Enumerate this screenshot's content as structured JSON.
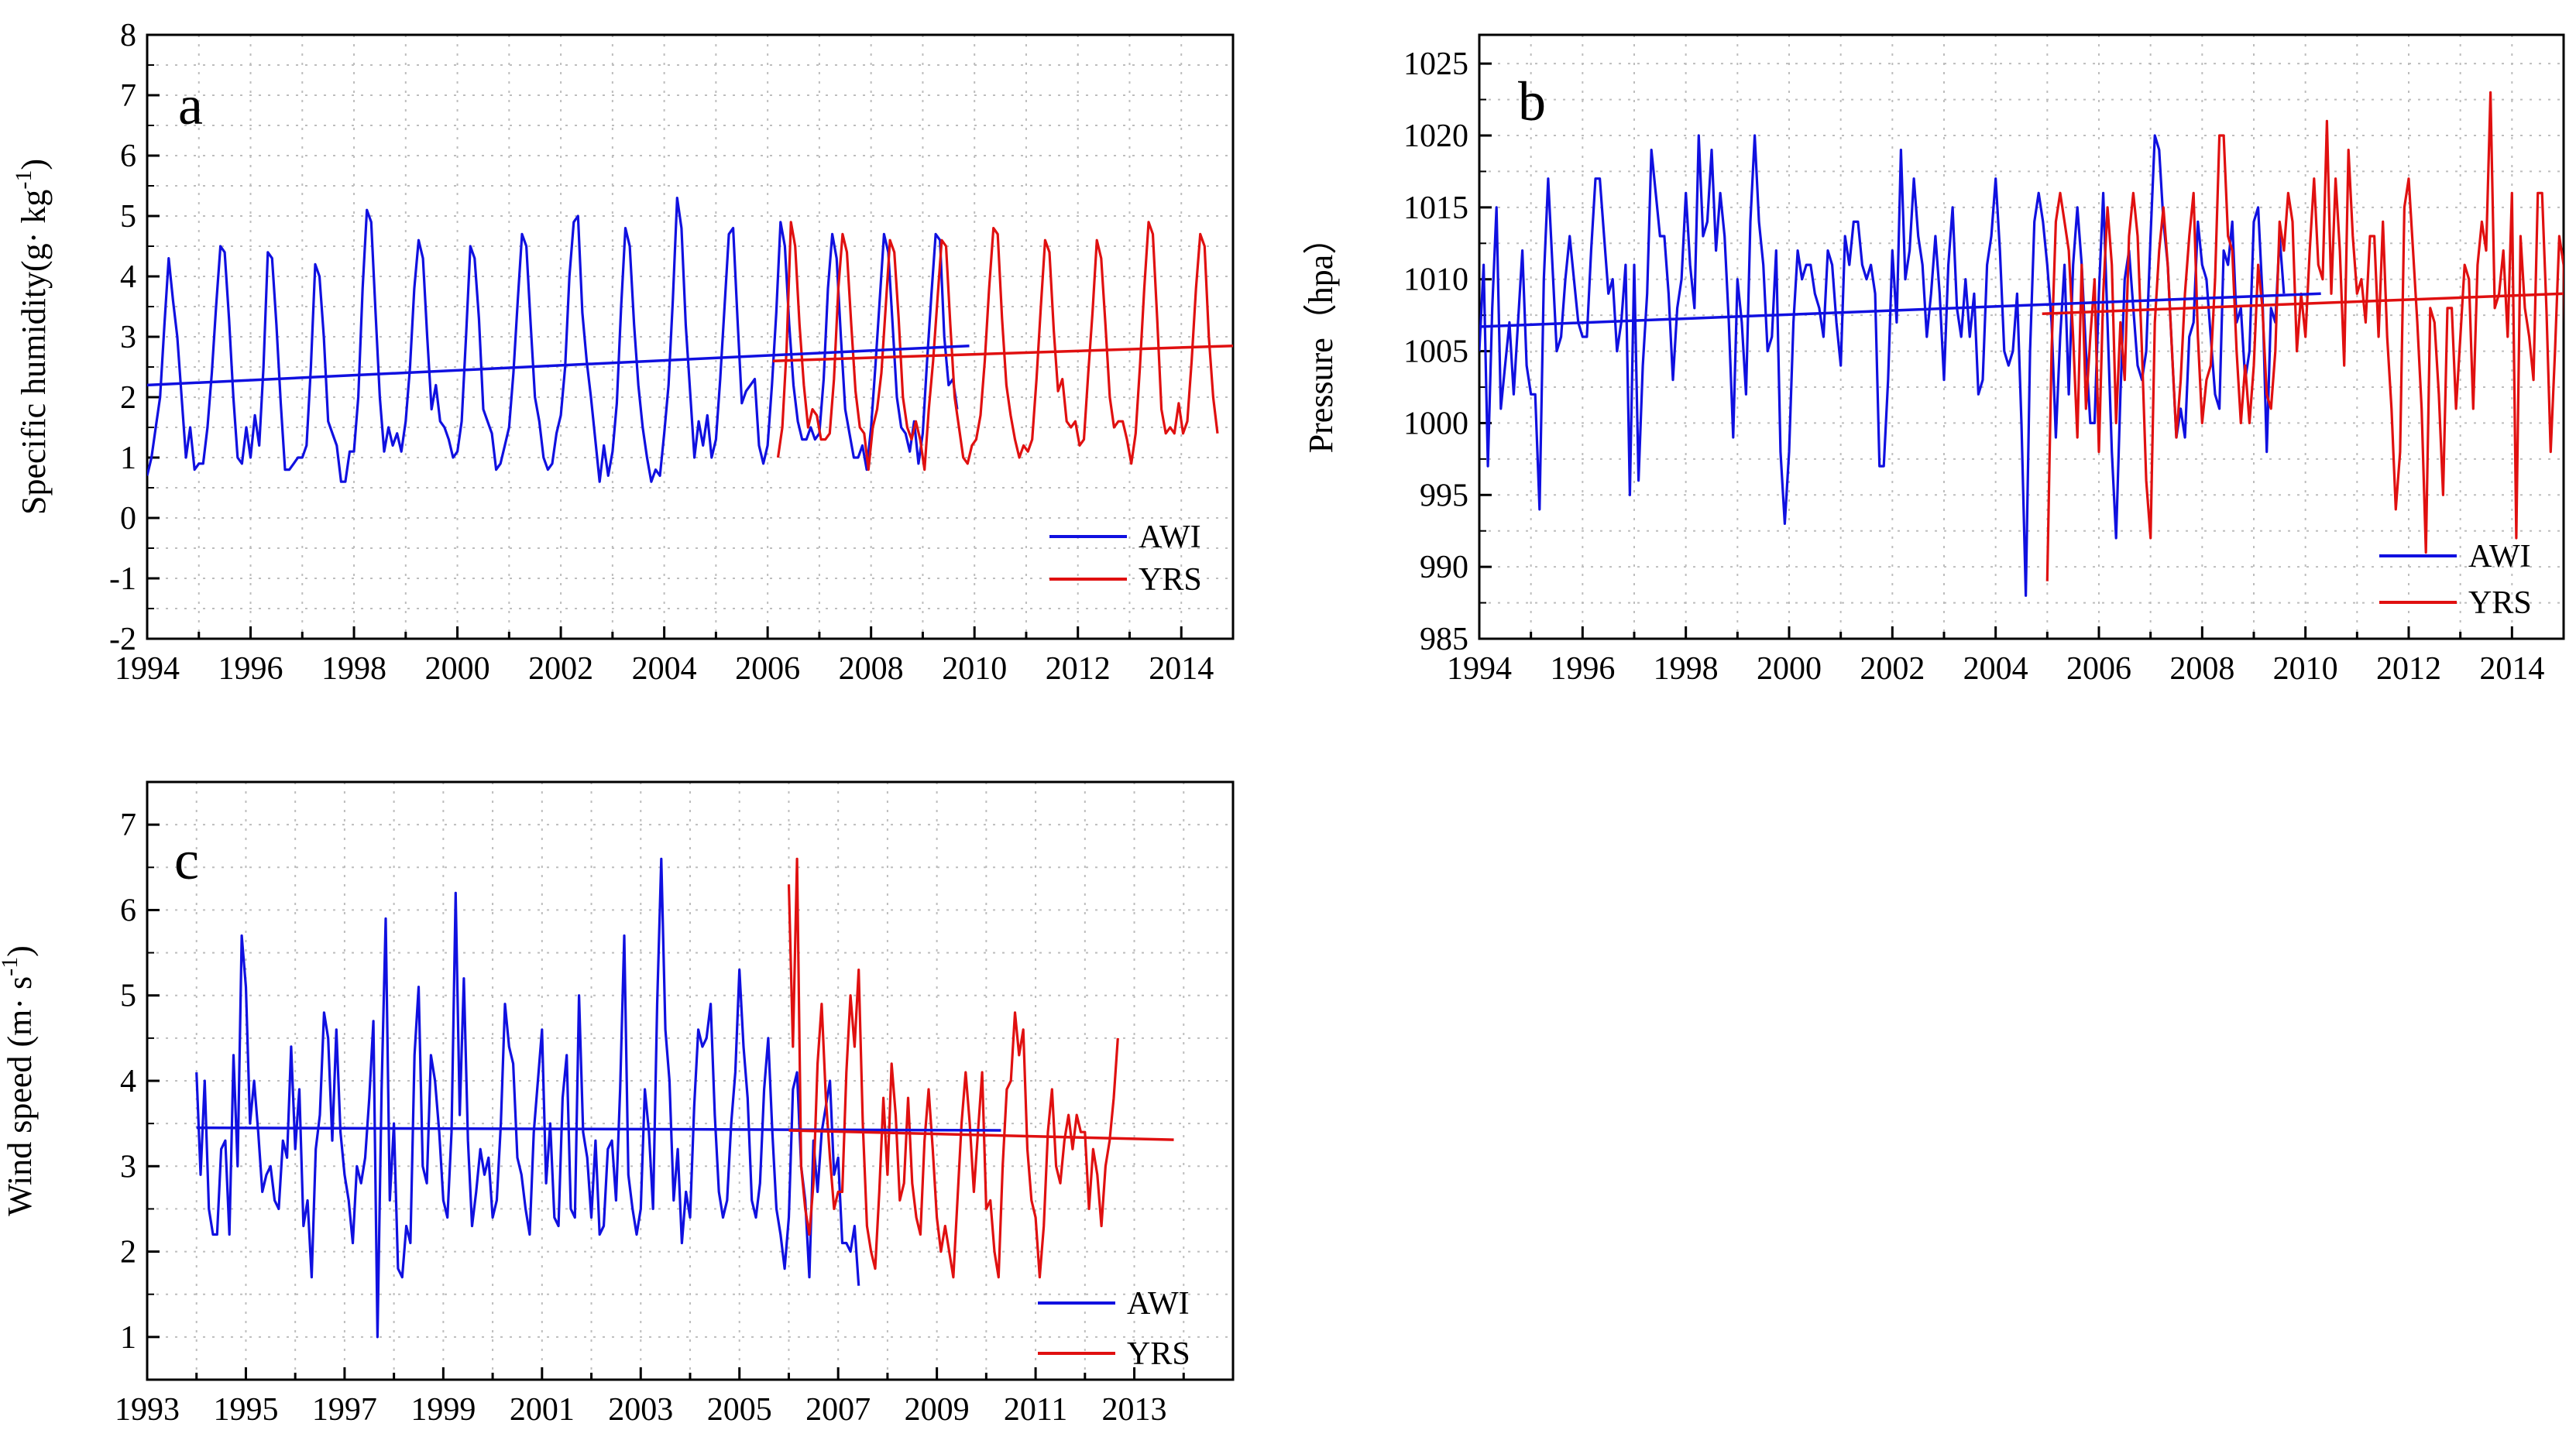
{
  "chart_data": [
    {
      "type": "line",
      "panel_label": "a",
      "ylabel_main": "Specific  humidity(g· kg",
      "ylabel_sup": "-1",
      "ylabel_close": ")",
      "xlim": [
        1994,
        2015
      ],
      "ylim": [
        -2,
        8
      ],
      "xticks": [
        "1994",
        "1996",
        "1998",
        "2000",
        "2002",
        "2004",
        "2006",
        "2008",
        "2010",
        "2012",
        "2014"
      ],
      "yticks": [
        "-2",
        "-1",
        "0",
        "1",
        "2",
        "3",
        "4",
        "5",
        "6",
        "7",
        "8"
      ],
      "legend": [
        "AWI",
        "YRS"
      ],
      "legend_position": "bottom-right",
      "colors": {
        "AWI": "#1010e0",
        "YRS": "#e01010"
      },
      "series": [
        {
          "name": "AWI",
          "start": 1994.0,
          "values": [
            0.7,
            1.0,
            1.5,
            2.0,
            3.2,
            4.3,
            3.6,
            3.0,
            2.0,
            1.0,
            1.5,
            0.8,
            0.9,
            0.9,
            1.5,
            2.4,
            3.5,
            4.5,
            4.4,
            3.3,
            2.0,
            1.0,
            0.9,
            1.5,
            1.0,
            1.7,
            1.2,
            2.5,
            4.4,
            4.3,
            3.2,
            1.9,
            0.8,
            0.8,
            0.9,
            1.0,
            1.0,
            1.2,
            2.5,
            4.2,
            4.0,
            3.0,
            1.6,
            1.4,
            1.2,
            0.6,
            0.6,
            1.1,
            1.1,
            2.0,
            3.8,
            5.1,
            4.9,
            3.4,
            2.0,
            1.1,
            1.5,
            1.2,
            1.4,
            1.1,
            1.6,
            2.5,
            3.8,
            4.6,
            4.3,
            3.0,
            1.8,
            2.2,
            1.6,
            1.5,
            1.3,
            1.0,
            1.1,
            1.6,
            3.0,
            4.5,
            4.3,
            3.3,
            1.8,
            1.6,
            1.4,
            0.8,
            0.9,
            1.2,
            1.5,
            2.4,
            3.6,
            4.7,
            4.5,
            3.2,
            2.0,
            1.6,
            1.0,
            0.8,
            0.9,
            1.4,
            1.7,
            2.5,
            4.0,
            4.9,
            5.0,
            3.4,
            2.6,
            2.0,
            1.3,
            0.6,
            1.2,
            0.7,
            1.1,
            1.9,
            3.5,
            4.8,
            4.5,
            3.2,
            2.2,
            1.5,
            1.0,
            0.6,
            0.8,
            0.7,
            1.4,
            2.2,
            3.6,
            5.3,
            4.8,
            3.2,
            2.1,
            1.0,
            1.6,
            1.2,
            1.7,
            1.0,
            1.3,
            2.3,
            3.5,
            4.7,
            4.8,
            3.3,
            1.9,
            2.1,
            2.2,
            2.3,
            1.2,
            0.9,
            1.2,
            2.2,
            3.4,
            4.9,
            4.5,
            3.2,
            2.2,
            1.6,
            1.3,
            1.3,
            1.5,
            1.3,
            1.4,
            2.3,
            3.8,
            4.7,
            4.3,
            3.0,
            1.8,
            1.4,
            1.0,
            1.0,
            1.2,
            0.8,
            1.5,
            2.5,
            3.6,
            4.7,
            4.4,
            3.2,
            2.0,
            1.5,
            1.4,
            1.1,
            1.6,
            0.9,
            1.4,
            2.6,
            3.7,
            4.7,
            4.6,
            3.0,
            2.2,
            2.3,
            1.8
          ]
        },
        {
          "name": "YRS",
          "start": 2006.2,
          "values": [
            1.0,
            1.5,
            2.8,
            4.9,
            4.5,
            3.2,
            2.2,
            1.5,
            1.8,
            1.7,
            1.3,
            1.3,
            1.4,
            2.3,
            3.8,
            4.7,
            4.4,
            3.2,
            2.1,
            1.5,
            1.4,
            0.8,
            1.5,
            1.8,
            2.4,
            3.5,
            4.6,
            4.4,
            3.3,
            2.0,
            1.5,
            1.3,
            1.6,
            1.3,
            0.8,
            1.8,
            2.6,
            3.6,
            4.6,
            4.5,
            3.2,
            2.0,
            1.5,
            1.0,
            0.9,
            1.2,
            1.3,
            1.7,
            2.6,
            3.8,
            4.8,
            4.7,
            3.3,
            2.2,
            1.7,
            1.3,
            1.0,
            1.2,
            1.1,
            1.3,
            2.3,
            3.5,
            4.6,
            4.4,
            3.1,
            2.1,
            2.3,
            1.6,
            1.5,
            1.6,
            1.2,
            1.3,
            2.4,
            3.4,
            4.6,
            4.3,
            3.2,
            2.0,
            1.5,
            1.6,
            1.6,
            1.3,
            0.9,
            1.4,
            2.5,
            3.8,
            4.9,
            4.7,
            3.3,
            1.8,
            1.4,
            1.5,
            1.4,
            1.9,
            1.4,
            1.6,
            2.6,
            3.8,
            4.7,
            4.5,
            3.0,
            2.0,
            1.4
          ]
        }
      ],
      "trends": [
        {
          "name": "AWI",
          "x": [
            1994.0,
            2009.9
          ],
          "y": [
            2.2,
            2.85
          ]
        },
        {
          "name": "YRS",
          "x": [
            2006.1,
            2015.0
          ],
          "y": [
            2.6,
            2.85
          ]
        }
      ]
    },
    {
      "type": "line",
      "panel_label": "b",
      "ylabel_main": "Pressure（hpa）",
      "xlim": [
        1994,
        2015
      ],
      "ylim": [
        985,
        1027
      ],
      "xticks": [
        "1994",
        "1996",
        "1998",
        "2000",
        "2002",
        "2004",
        "2006",
        "2008",
        "2010",
        "2012",
        "2014"
      ],
      "yticks": [
        "985",
        "990",
        "995",
        "1000",
        "1005",
        "1010",
        "1015",
        "1020",
        "1025"
      ],
      "legend": [
        "AWI",
        "YRS"
      ],
      "legend_position": "bottom-right",
      "colors": {
        "AWI": "#1010e0",
        "YRS": "#e01010"
      },
      "series": [
        {
          "name": "AWI",
          "start": 1994.0,
          "values": [
            1005,
            1011,
            997,
            1008,
            1015,
            1001,
            1004,
            1007,
            1002,
            1007,
            1012,
            1004,
            1002,
            1002,
            994,
            1010,
            1017,
            1011,
            1005,
            1006,
            1010,
            1013,
            1010,
            1007,
            1006,
            1006,
            1012,
            1017,
            1017,
            1013,
            1009,
            1010,
            1005,
            1007,
            1011,
            995,
            1011,
            996,
            1004,
            1009,
            1019,
            1016,
            1013,
            1013,
            1009,
            1003,
            1008,
            1010,
            1016,
            1011,
            1008,
            1020,
            1013,
            1014,
            1019,
            1012,
            1016,
            1013,
            1007,
            999,
            1010,
            1007,
            1002,
            1014,
            1020,
            1014,
            1011,
            1005,
            1006,
            1012,
            998,
            993,
            998,
            1007,
            1012,
            1010,
            1011,
            1011,
            1009,
            1008,
            1006,
            1012,
            1011,
            1007,
            1004,
            1013,
            1011,
            1014,
            1014,
            1011,
            1010,
            1011,
            1009,
            997,
            997,
            1003,
            1012,
            1007,
            1019,
            1010,
            1012,
            1017,
            1013,
            1011,
            1006,
            1009,
            1013,
            1009,
            1003,
            1011,
            1015,
            1008,
            1006,
            1010,
            1006,
            1009,
            1002,
            1003,
            1011,
            1013,
            1017,
            1012,
            1005,
            1004,
            1005,
            1009,
            1000,
            988,
            1005,
            1014,
            1016,
            1014,
            1011,
            1007,
            999,
            1006,
            1011,
            1002,
            1011,
            1015,
            1011,
            1005,
            1000,
            1000,
            1009,
            1016,
            1007,
            998,
            992,
            1002,
            1010,
            1012,
            1008,
            1004,
            1003,
            1005,
            1013,
            1020,
            1019,
            1014,
            1011,
            1005,
            999,
            1001,
            999,
            1006,
            1007,
            1014,
            1011,
            1010,
            1006,
            1002,
            1001,
            1012,
            1011,
            1014,
            1007,
            1008,
            1003,
            1005,
            1014,
            1015,
            1009,
            998,
            1008,
            1007,
            1013,
            1009
          ]
        },
        {
          "name": "YRS",
          "start": 2005.0,
          "values": [
            989,
            1005,
            1014,
            1016,
            1014,
            1012,
            1006,
            999,
            1011,
            1001,
            1006,
            1010,
            998,
            1009,
            1015,
            1011,
            1000,
            1007,
            1003,
            1013,
            1016,
            1013,
            1005,
            996,
            992,
            1007,
            1012,
            1015,
            1011,
            1005,
            999,
            1003,
            1009,
            1013,
            1016,
            1006,
            1000,
            1003,
            1004,
            1010,
            1020,
            1020,
            1013,
            1012,
            1005,
            1000,
            1004,
            1000,
            1004,
            1011,
            1008,
            1002,
            1001,
            1005,
            1014,
            1012,
            1016,
            1014,
            1005,
            1009,
            1006,
            1012,
            1017,
            1011,
            1010,
            1021,
            1009,
            1017,
            1012,
            1004,
            1019,
            1013,
            1009,
            1010,
            1007,
            1013,
            1013,
            1006,
            1014,
            1006,
            1001,
            994,
            998,
            1015,
            1017,
            1012,
            1007,
            1001,
            991,
            1008,
            1007,
            1002,
            995,
            1008,
            1008,
            1001,
            1006,
            1011,
            1010,
            1001,
            1011,
            1014,
            1012,
            1023,
            1008,
            1009,
            1012,
            1006,
            1016,
            992,
            1013,
            1008,
            1006,
            1003,
            1016,
            1016,
            1008,
            998,
            1005,
            1013,
            1011,
            996
          ]
        }
      ],
      "trends": [
        {
          "name": "AWI",
          "x": [
            1994.0,
            2010.3
          ],
          "y": [
            1006.7,
            1009.0
          ]
        },
        {
          "name": "YRS",
          "x": [
            2004.9,
            2015.0
          ],
          "y": [
            1007.6,
            1009.0
          ]
        }
      ]
    },
    {
      "type": "line",
      "panel_label": "c",
      "ylabel_main": "Wind speed (m· s",
      "ylabel_sup": "-1",
      "ylabel_close": ")",
      "xlim": [
        1993,
        2015
      ],
      "ylim": [
        0.5,
        7.5
      ],
      "xticks": [
        "1993",
        "1995",
        "1997",
        "1999",
        "2001",
        "2003",
        "2005",
        "2007",
        "2009",
        "2011",
        "2013"
      ],
      "yticks": [
        "1",
        "2",
        "3",
        "4",
        "5",
        "6",
        "7"
      ],
      "legend": [
        "AWI",
        "YRS"
      ],
      "legend_position": "bottom-right",
      "colors": {
        "AWI": "#1010e0",
        "YRS": "#e01010"
      },
      "series": [
        {
          "name": "AWI",
          "start": 1994.0,
          "values": [
            4.1,
            2.9,
            4.0,
            2.5,
            2.2,
            2.2,
            3.2,
            3.3,
            2.2,
            4.3,
            3.0,
            5.7,
            5.1,
            3.5,
            4.0,
            3.4,
            2.7,
            2.9,
            3.0,
            2.6,
            2.5,
            3.3,
            3.1,
            4.4,
            3.2,
            3.9,
            2.3,
            2.6,
            1.7,
            3.2,
            3.6,
            4.8,
            4.5,
            3.3,
            4.6,
            3.4,
            2.9,
            2.6,
            2.1,
            3.0,
            2.8,
            3.1,
            3.8,
            4.7,
            1.0,
            3.9,
            5.9,
            2.6,
            3.5,
            1.8,
            1.7,
            2.3,
            2.1,
            4.3,
            5.1,
            3.0,
            2.8,
            4.3,
            4.0,
            3.4,
            2.6,
            2.4,
            3.4,
            6.2,
            3.6,
            5.2,
            3.3,
            2.3,
            2.7,
            3.2,
            2.9,
            3.1,
            2.4,
            2.6,
            3.5,
            4.9,
            4.4,
            4.2,
            3.1,
            2.9,
            2.5,
            2.2,
            3.4,
            4.0,
            4.6,
            2.8,
            3.5,
            2.4,
            2.3,
            3.8,
            4.3,
            2.5,
            2.4,
            5.0,
            3.4,
            3.1,
            2.4,
            3.3,
            2.2,
            2.3,
            3.2,
            3.3,
            2.6,
            3.9,
            5.7,
            2.9,
            2.5,
            2.2,
            2.5,
            3.9,
            3.4,
            2.5,
            4.9,
            6.6,
            4.6,
            4.0,
            2.6,
            3.2,
            2.1,
            2.7,
            2.4,
            3.7,
            4.6,
            4.4,
            4.5,
            4.9,
            3.6,
            2.7,
            2.4,
            2.6,
            3.5,
            4.1,
            5.3,
            4.4,
            3.8,
            2.6,
            2.4,
            2.8,
            3.9,
            4.5,
            3.4,
            2.5,
            2.2,
            1.8,
            2.4,
            3.9,
            4.1,
            3.0,
            2.6,
            1.7,
            3.3,
            2.7,
            3.4,
            3.7,
            4.0,
            2.9,
            3.1,
            2.1,
            2.1,
            2.0,
            2.3,
            1.6
          ]
        },
        {
          "name": "YRS",
          "start": 2006.0,
          "values": [
            6.3,
            4.4,
            6.6,
            3.0,
            2.5,
            2.2,
            2.8,
            4.2,
            4.9,
            3.8,
            3.1,
            2.5,
            2.7,
            2.7,
            4.1,
            5.0,
            4.4,
            5.3,
            3.5,
            2.3,
            2.0,
            1.8,
            2.7,
            3.8,
            2.9,
            4.2,
            3.6,
            2.6,
            2.8,
            3.8,
            2.8,
            2.4,
            2.2,
            3.3,
            3.9,
            3.2,
            2.4,
            2.0,
            2.3,
            2.0,
            1.7,
            2.6,
            3.5,
            4.1,
            3.5,
            2.7,
            3.4,
            4.1,
            2.5,
            2.6,
            2.0,
            1.7,
            3.0,
            3.9,
            4.0,
            4.8,
            4.3,
            4.6,
            3.2,
            2.6,
            2.4,
            1.7,
            2.3,
            3.4,
            3.9,
            3.0,
            2.8,
            3.3,
            3.6,
            3.2,
            3.6,
            3.4,
            3.4,
            2.5,
            3.2,
            2.9,
            2.3,
            3.0,
            3.3,
            3.8,
            4.5
          ]
        }
      ],
      "trends": [
        {
          "name": "AWI",
          "x": [
            1994.0,
            2010.3
          ],
          "y": [
            3.45,
            3.42
          ]
        },
        {
          "name": "YRS",
          "x": [
            2006.0,
            2013.8
          ],
          "y": [
            3.42,
            3.31
          ]
        }
      ]
    }
  ]
}
